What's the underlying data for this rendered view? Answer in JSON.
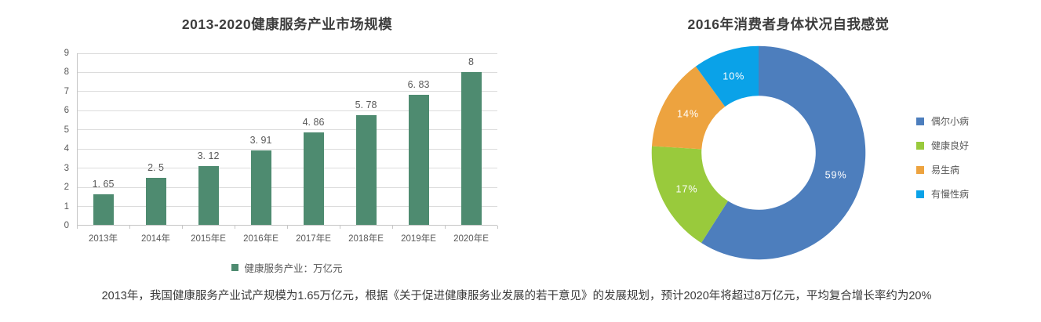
{
  "caption": "2013年，我国健康服务产业试产规模为1.65万亿元，根据《关于促进健康服务业发展的若干意见》的发展规划，预计2020年将超过8万亿元，平均复合增长率约为20%",
  "chart_data": [
    {
      "type": "bar",
      "title": "2013-2020健康服务产业市场规模",
      "categories": [
        "2013年",
        "2014年",
        "2015年E",
        "2016年E",
        "2017年E",
        "2018年E",
        "2019年E",
        "2020年E"
      ],
      "values": [
        1.65,
        2.5,
        3.12,
        3.91,
        4.86,
        5.78,
        6.83,
        8
      ],
      "value_labels": [
        "1.65",
        "2.5",
        "3.12",
        "3.91",
        "4.86",
        "5.78",
        "6.83",
        "8"
      ],
      "xlabel": "",
      "ylabel": "",
      "ylim": [
        0,
        9
      ],
      "ytick_step": 1,
      "grid": true,
      "bar_color": "#4e8b70",
      "legend": {
        "position": "bottom",
        "label": "健康服务产业：万亿元"
      }
    },
    {
      "type": "pie",
      "title": "2016年消费者身体状况自我感觉",
      "donut": true,
      "start_angle_deg": 0,
      "legend_position": "right",
      "slices": [
        {
          "label": "偶尔小病",
          "value": 59,
          "display": "59%",
          "color": "#4d7ebd"
        },
        {
          "label": "健康良好",
          "value": 17,
          "display": "17%",
          "color": "#99ca3c"
        },
        {
          "label": "易生病",
          "value": 14,
          "display": "14%",
          "color": "#eda33f"
        },
        {
          "label": "有慢性病",
          "value": 10,
          "display": "10%",
          "color": "#0aa2e8"
        }
      ]
    }
  ]
}
